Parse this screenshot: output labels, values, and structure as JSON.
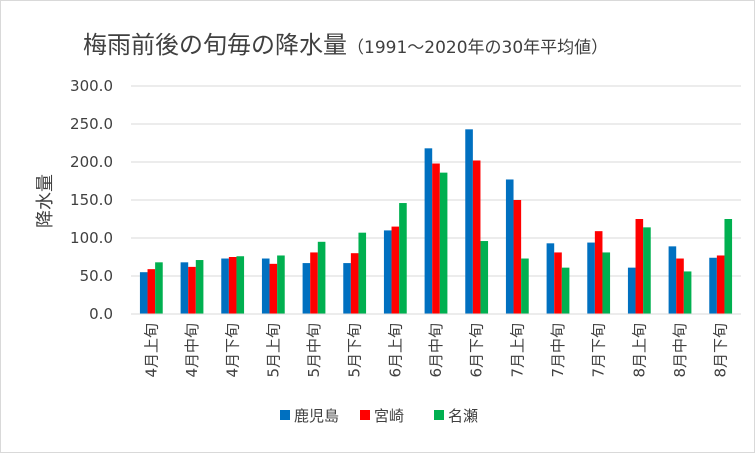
{
  "chart_data": {
    "type": "bar",
    "title": "梅雨前後の旬毎の降水量",
    "subtitle": "（1991～2020年の30年平均値）",
    "ylabel": "降水量",
    "ylim": [
      0,
      300
    ],
    "yticks": [
      "0.0",
      "50.0",
      "100.0",
      "150.0",
      "200.0",
      "250.0",
      "300.0"
    ],
    "grid": true,
    "legend_position": "bottom",
    "categories": [
      "4月上旬",
      "4月中旬",
      "4月下旬",
      "5月上旬",
      "5月中旬",
      "5月下旬",
      "6月上旬",
      "6月中旬",
      "6月下旬",
      "7月上旬",
      "7月中旬",
      "7月下旬",
      "8月上旬",
      "8月中旬",
      "8月下旬"
    ],
    "series": [
      {
        "name": "鹿児島",
        "color": "#0070c0",
        "values": [
          55,
          68,
          73,
          73,
          67,
          67,
          110,
          218,
          243,
          177,
          93,
          94,
          61,
          89,
          74
        ]
      },
      {
        "name": "宮崎",
        "color": "#ff0000",
        "values": [
          59,
          62,
          75,
          66,
          81,
          80,
          115,
          198,
          202,
          150,
          81,
          109,
          125,
          73,
          77
        ]
      },
      {
        "name": "名瀬",
        "color": "#00b050",
        "values": [
          68,
          71,
          76,
          77,
          95,
          107,
          146,
          186,
          96,
          73,
          61,
          81,
          114,
          56,
          125
        ]
      }
    ]
  }
}
